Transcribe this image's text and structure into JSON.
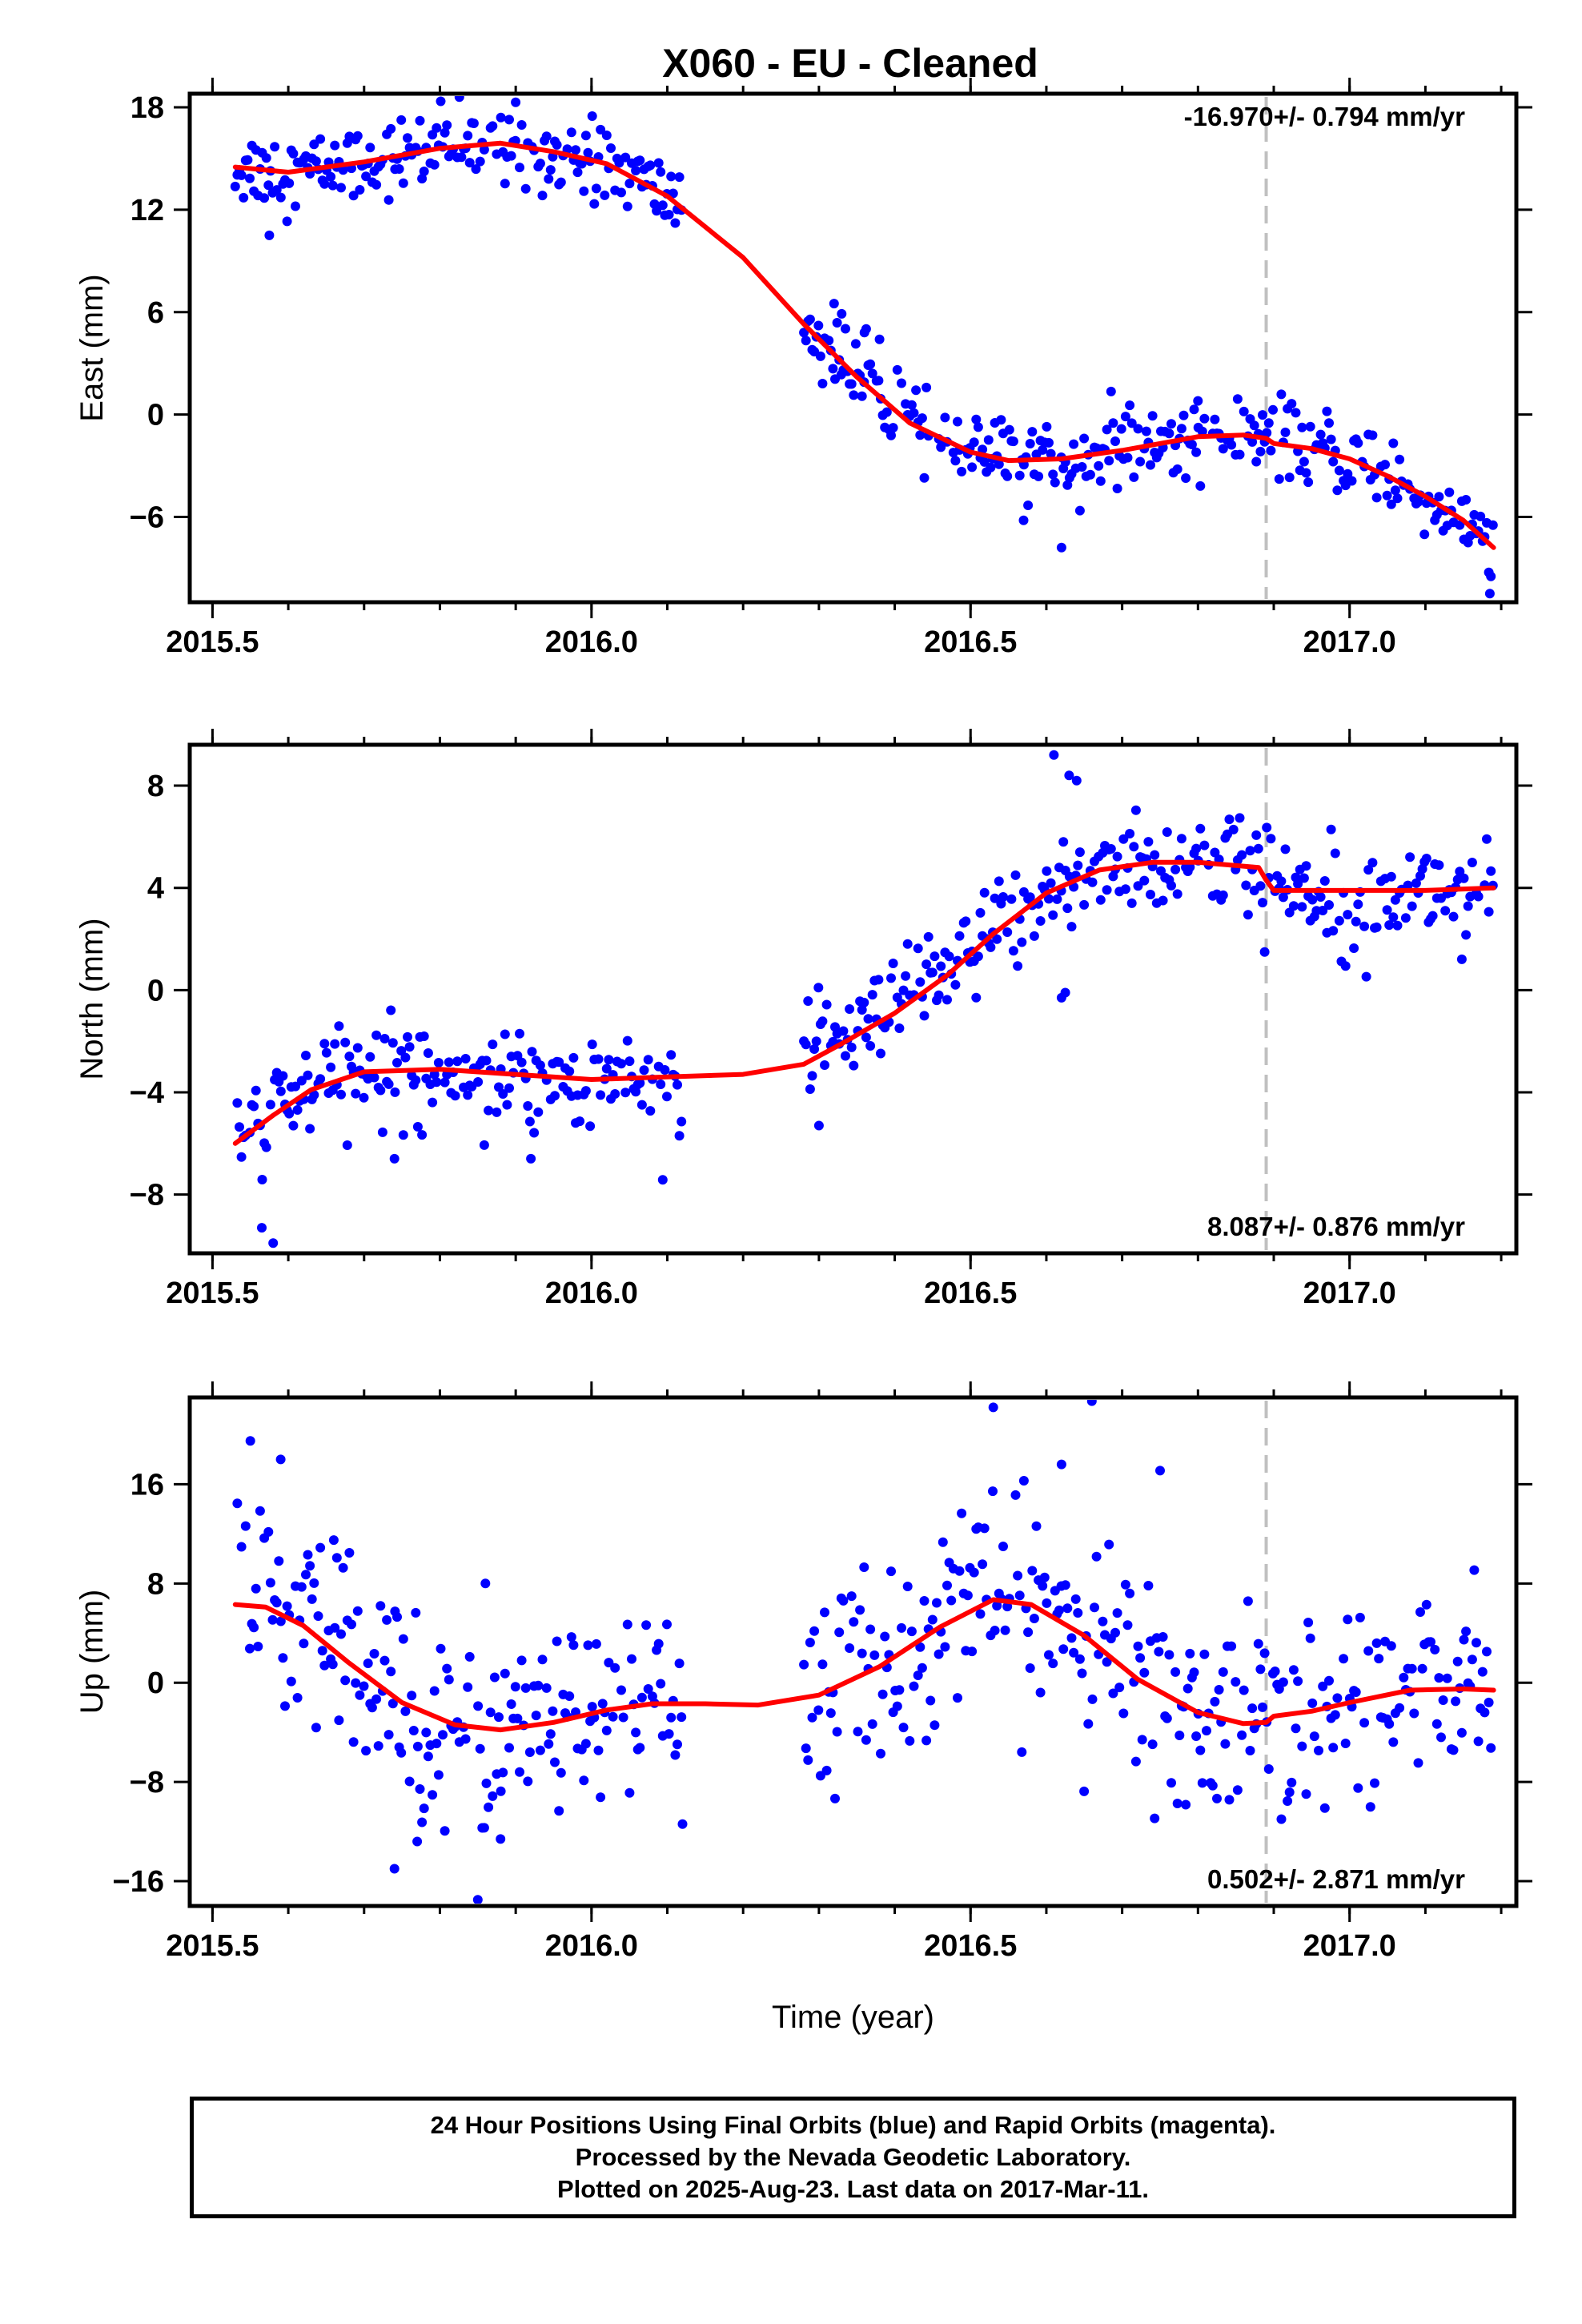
{
  "title": "X060  - EU - Cleaned",
  "footer": {
    "line1": "24 Hour Positions Using Final Orbits (blue) and Rapid Orbits (magenta).",
    "line2": "Processed by the Nevada Geodetic Laboratory.",
    "line3": "Plotted on 2025-Aug-23. Last data on 2017-Mar-11."
  },
  "colors": {
    "final_orbits": "#0000ff",
    "model": "#ff0000",
    "event_line": "#c0c0c0"
  },
  "chart_data": [
    {
      "type": "scatter",
      "component": "East",
      "ylabel": "East (mm)",
      "xlabel": "",
      "xlim": [
        2015.47,
        2017.22
      ],
      "ylim": [
        -11,
        18.8
      ],
      "yticks": [
        18,
        12,
        6,
        0,
        -6
      ],
      "ytick_labels": [
        "18",
        "12",
        "6",
        "0",
        "−6"
      ],
      "xticks": [
        2015.5,
        2016.0,
        2016.5,
        2017.0
      ],
      "xtick_labels": [
        "2015.5",
        "2016.0",
        "2016.5",
        "2017.0"
      ],
      "rate_label": "-16.970+/- 0.794 mm/yr",
      "rate_position": "top-right",
      "event_line_x": 2016.89,
      "model_curve": [
        [
          2015.53,
          14.5
        ],
        [
          2015.6,
          14.2
        ],
        [
          2015.7,
          14.8
        ],
        [
          2015.8,
          15.6
        ],
        [
          2015.88,
          15.9
        ],
        [
          2015.95,
          15.4
        ],
        [
          2016.02,
          14.7
        ],
        [
          2016.1,
          12.8
        ],
        [
          2016.2,
          9.2
        ],
        [
          2016.28,
          5.3
        ],
        [
          2016.35,
          2.2
        ],
        [
          2016.42,
          -0.5
        ],
        [
          2016.5,
          -2.2
        ],
        [
          2016.55,
          -2.7
        ],
        [
          2016.62,
          -2.6
        ],
        [
          2016.7,
          -2.1
        ],
        [
          2016.8,
          -1.3
        ],
        [
          2016.86,
          -1.2
        ],
        [
          2016.89,
          -1.4
        ],
        [
          2016.9,
          -1.7
        ],
        [
          2016.95,
          -2.0
        ],
        [
          2017.0,
          -2.6
        ],
        [
          2017.05,
          -3.6
        ],
        [
          2017.1,
          -4.8
        ],
        [
          2017.15,
          -6.2
        ],
        [
          2017.19,
          -7.8
        ]
      ],
      "daily_scatter_mm": 1.1,
      "gaps": [
        [
          2016.12,
          2016.28
        ]
      ],
      "outliers": [
        [
          2015.575,
          10.5
        ],
        [
          2016.62,
          -7.8
        ],
        [
          2017.185,
          -10.5
        ],
        [
          2016.32,
          6.5
        ],
        [
          2016.33,
          5.9
        ],
        [
          2016.36,
          4.8
        ],
        [
          2016.38,
          4.4
        ],
        [
          2016.57,
          -6.2
        ],
        [
          2015.9,
          18.3
        ],
        [
          2016.8,
          0.8
        ]
      ]
    },
    {
      "type": "scatter",
      "component": "North",
      "ylabel": "North (mm)",
      "xlabel": "",
      "xlim": [
        2015.47,
        2017.22
      ],
      "ylim": [
        -10.3,
        9.6
      ],
      "yticks": [
        8,
        4,
        0,
        -4,
        -8
      ],
      "ytick_labels": [
        "8",
        "4",
        "0",
        "−4",
        "−8"
      ],
      "xticks": [
        2015.5,
        2016.0,
        2016.5,
        2017.0
      ],
      "xtick_labels": [
        "2015.5",
        "2016.0",
        "2016.5",
        "2017.0"
      ],
      "rate_label": "8.087+/- 0.876 mm/yr",
      "rate_position": "bottom-right",
      "event_line_x": 2016.89,
      "model_curve": [
        [
          2015.53,
          -6.0
        ],
        [
          2015.58,
          -4.9
        ],
        [
          2015.63,
          -3.9
        ],
        [
          2015.7,
          -3.2
        ],
        [
          2015.8,
          -3.1
        ],
        [
          2015.9,
          -3.3
        ],
        [
          2016.0,
          -3.5
        ],
        [
          2016.1,
          -3.4
        ],
        [
          2016.2,
          -3.3
        ],
        [
          2016.28,
          -2.9
        ],
        [
          2016.33,
          -2.1
        ],
        [
          2016.4,
          -0.9
        ],
        [
          2016.47,
          0.6
        ],
        [
          2016.53,
          2.2
        ],
        [
          2016.6,
          3.8
        ],
        [
          2016.67,
          4.7
        ],
        [
          2016.74,
          5.0
        ],
        [
          2016.8,
          5.0
        ],
        [
          2016.88,
          4.8
        ],
        [
          2016.89,
          4.3
        ],
        [
          2016.9,
          3.9
        ],
        [
          2017.0,
          3.9
        ],
        [
          2017.1,
          3.9
        ],
        [
          2017.19,
          4.0
        ]
      ],
      "daily_scatter_mm": 1.0,
      "gaps": [
        [
          2016.12,
          2016.28
        ]
      ],
      "outliers": [
        [
          2015.58,
          -9.9
        ],
        [
          2015.565,
          -9.3
        ],
        [
          2016.61,
          9.2
        ],
        [
          2016.63,
          8.4
        ],
        [
          2016.64,
          8.2
        ],
        [
          2016.625,
          -0.1
        ],
        [
          2016.62,
          -0.3
        ],
        [
          2016.3,
          -5.3
        ],
        [
          2015.92,
          -6.6
        ],
        [
          2015.74,
          -6.6
        ]
      ]
    },
    {
      "type": "scatter",
      "component": "Up",
      "ylabel": "Up (mm)",
      "xlabel": "Time (year)",
      "xlim": [
        2015.47,
        2017.22
      ],
      "ylim": [
        -18,
        23
      ],
      "yticks": [
        16,
        8,
        0,
        -8,
        -16
      ],
      "ytick_labels": [
        "16",
        "8",
        "0",
        "−8",
        "−16"
      ],
      "xticks": [
        2015.5,
        2016.0,
        2016.5,
        2017.0
      ],
      "xtick_labels": [
        "2015.5",
        "2016.0",
        "2016.5",
        "2017.0"
      ],
      "rate_label": "0.502+/- 2.871 mm/yr",
      "rate_position": "bottom-right",
      "event_line_x": 2016.89,
      "model_curve": [
        [
          2015.53,
          6.3
        ],
        [
          2015.57,
          6.1
        ],
        [
          2015.62,
          4.6
        ],
        [
          2015.68,
          1.6
        ],
        [
          2015.75,
          -1.6
        ],
        [
          2015.82,
          -3.4
        ],
        [
          2015.88,
          -3.8
        ],
        [
          2015.95,
          -3.2
        ],
        [
          2016.02,
          -2.2
        ],
        [
          2016.08,
          -1.7
        ],
        [
          2016.15,
          -1.7
        ],
        [
          2016.22,
          -1.8
        ],
        [
          2016.3,
          -1.0
        ],
        [
          2016.38,
          1.3
        ],
        [
          2016.46,
          4.5
        ],
        [
          2016.53,
          6.7
        ],
        [
          2016.58,
          6.3
        ],
        [
          2016.65,
          3.8
        ],
        [
          2016.72,
          0.3
        ],
        [
          2016.8,
          -2.4
        ],
        [
          2016.86,
          -3.3
        ],
        [
          2016.89,
          -3.2
        ],
        [
          2016.9,
          -2.7
        ],
        [
          2016.95,
          -2.3
        ],
        [
          2017.0,
          -1.6
        ],
        [
          2017.08,
          -0.6
        ],
        [
          2017.15,
          -0.5
        ],
        [
          2017.19,
          -0.6
        ]
      ],
      "daily_scatter_mm": 4.0,
      "gaps": [
        [
          2016.12,
          2016.28
        ]
      ],
      "outliers": [
        [
          2015.55,
          19.5
        ],
        [
          2015.59,
          18.0
        ],
        [
          2016.53,
          22.2
        ],
        [
          2016.66,
          22.7
        ],
        [
          2016.62,
          17.6
        ],
        [
          2016.75,
          17.1
        ],
        [
          2015.74,
          -15.0
        ],
        [
          2015.85,
          -17.5
        ],
        [
          2015.77,
          -12.8
        ],
        [
          2015.88,
          -12.6
        ],
        [
          2016.91,
          -11.0
        ],
        [
          2016.12,
          -11.4
        ],
        [
          2015.86,
          8.0
        ],
        [
          2015.66,
          11.5
        ]
      ]
    }
  ]
}
